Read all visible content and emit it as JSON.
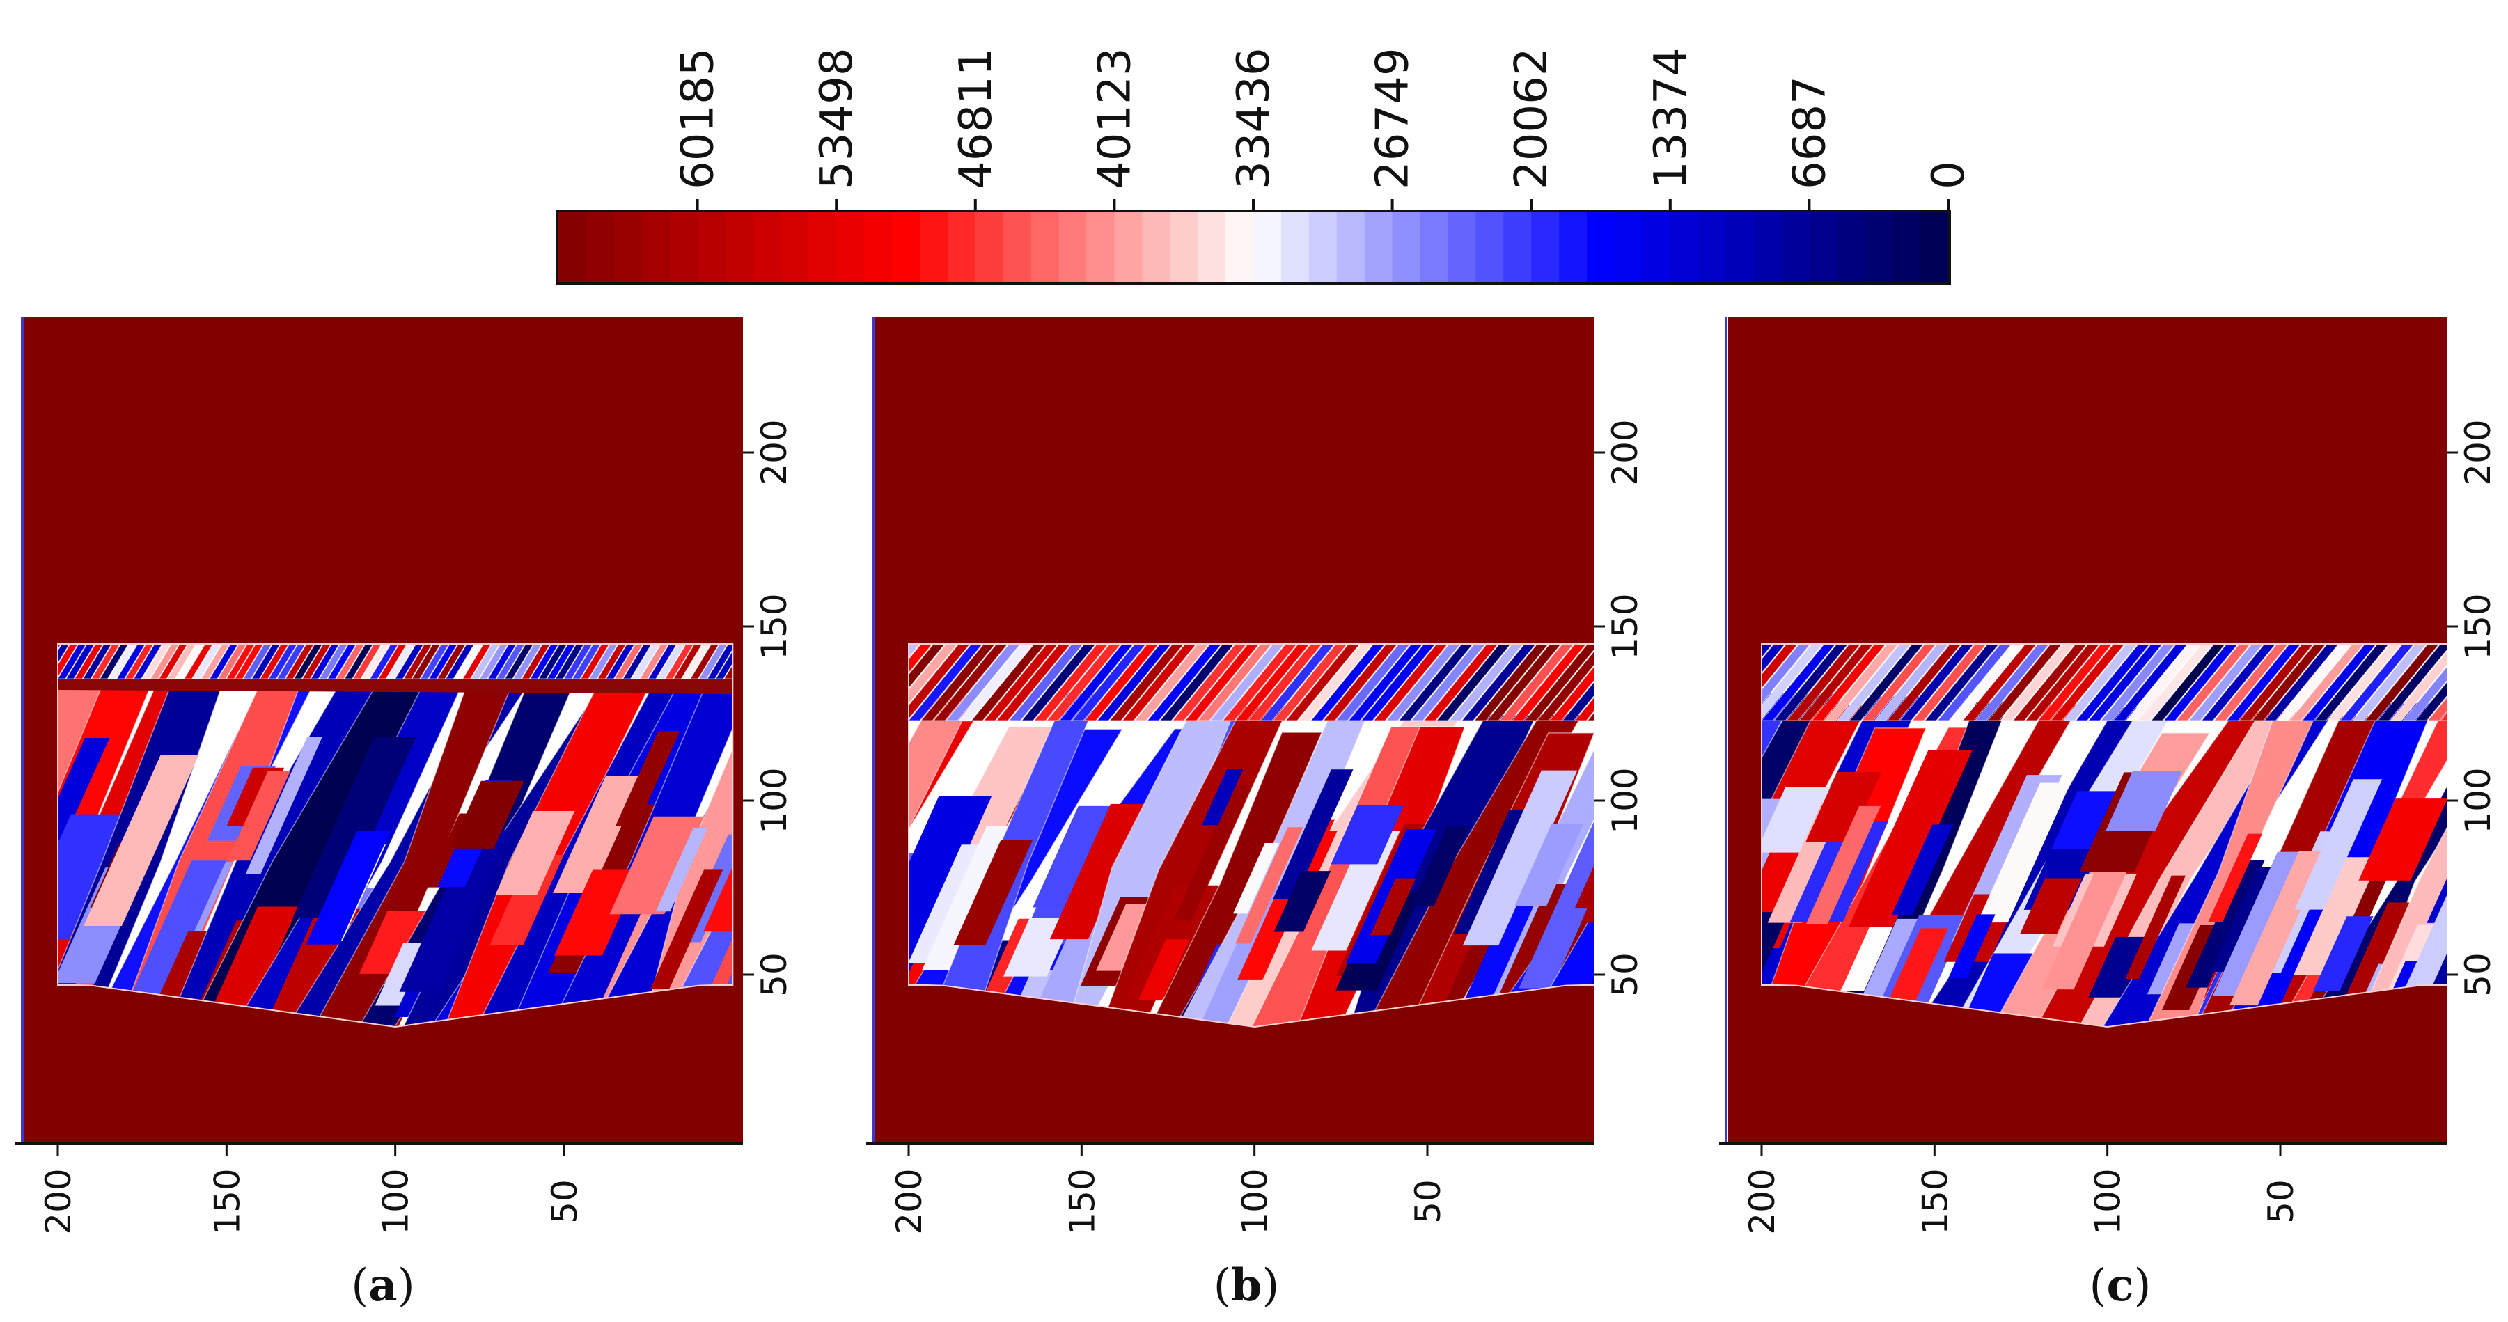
{
  "colorbar": {
    "type": "colorbar",
    "colormap": "seismic (reversed)",
    "range": [
      0,
      66872
    ],
    "ticks": [
      "60185",
      "53498",
      "46811",
      "40123",
      "33436",
      "26749",
      "20062",
      "13374",
      "6687",
      "0"
    ]
  },
  "chart_data": [
    {
      "type": "heatmap",
      "panel_label": "a",
      "x_ticks": [
        "200",
        "150",
        "100",
        "50"
      ],
      "y_ticks": [
        "50",
        "100",
        "150",
        "200"
      ],
      "background_value": 66872,
      "region": {
        "x_min": 0,
        "x_max": 200,
        "y_min": 35,
        "y_max": 145
      }
    },
    {
      "type": "heatmap",
      "panel_label": "b",
      "x_ticks": [
        "200",
        "150",
        "100",
        "50"
      ],
      "y_ticks": [
        "50",
        "100",
        "150",
        "200"
      ],
      "background_value": 66872,
      "region": {
        "x_min": 0,
        "x_max": 200,
        "y_min": 35,
        "y_max": 145
      }
    },
    {
      "type": "heatmap",
      "panel_label": "c",
      "x_ticks": [
        "200",
        "150",
        "100",
        "50"
      ],
      "y_ticks": [
        "50",
        "100",
        "150",
        "200"
      ],
      "background_value": 66872,
      "region": {
        "x_min": 0,
        "x_max": 200,
        "y_min": 35,
        "y_max": 145
      }
    }
  ],
  "captions": [
    {
      "open": "(",
      "letter": "a",
      "close": ")"
    },
    {
      "open": "(",
      "letter": "b",
      "close": ")"
    },
    {
      "open": "(",
      "letter": "c",
      "close": ")"
    }
  ],
  "colors": {
    "background_red": "#800000",
    "white": "#ffffff"
  }
}
